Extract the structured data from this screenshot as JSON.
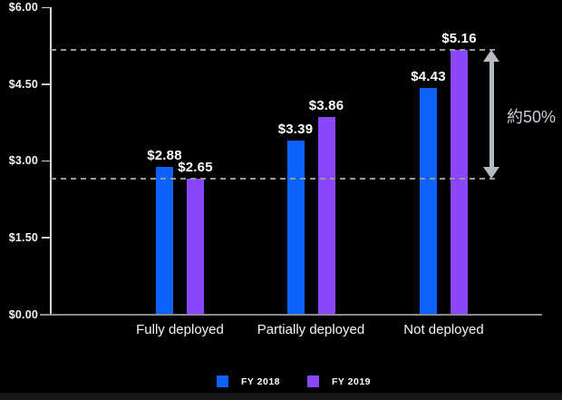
{
  "chart_data": {
    "type": "bar",
    "title": "",
    "categories": [
      "Fully deployed",
      "Partially deployed",
      "Not deployed"
    ],
    "series": [
      {
        "name": "FY 2018",
        "color": "#0b62fc",
        "values": [
          2.88,
          3.39,
          4.43
        ],
        "value_labels": [
          "$2.88",
          "$3.39",
          "$4.43"
        ]
      },
      {
        "name": "FY 2019",
        "color": "#8b46f9",
        "values": [
          2.65,
          3.86,
          5.16
        ],
        "value_labels": [
          "$2.65",
          "$3.86",
          "$5.16"
        ]
      }
    ],
    "y_axis": {
      "min": 0,
      "max": 6,
      "ticks": [
        {
          "value": 6,
          "label": "$6.00"
        },
        {
          "value": 4.5,
          "label": "$4.50"
        },
        {
          "value": 3,
          "label": "$3.00"
        },
        {
          "value": 1.5,
          "label": "$1.50"
        },
        {
          "value": 0,
          "label": "$0.00"
        }
      ]
    },
    "xlabel": "",
    "ylabel": "",
    "grid": false,
    "legend_position": "bottom",
    "reference_lines": [
      {
        "value": 5.16,
        "style": "dashed"
      },
      {
        "value": 2.65,
        "style": "dashed"
      }
    ],
    "annotation": {
      "label": "約50%",
      "from_value": 2.65,
      "to_value": 5.16,
      "arrow_color": "#b5bbc3",
      "text_color": "#c9ced6"
    },
    "colors": {
      "background": "#000000",
      "axis_line": "#d8d8d8",
      "baseline": "#8a8a8a",
      "dashed_line": "#95999e",
      "label_text": "#ffffff"
    }
  }
}
